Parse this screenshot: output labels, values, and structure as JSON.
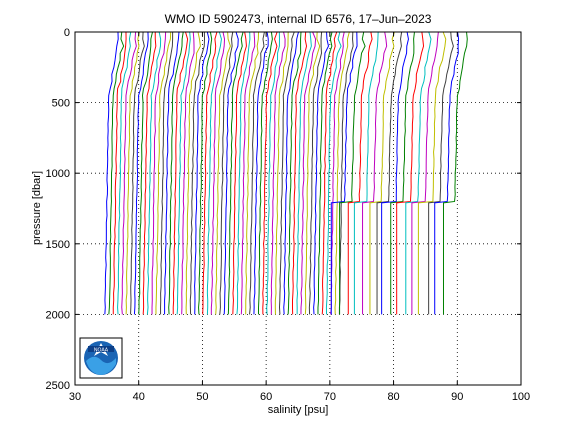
{
  "chart_data": {
    "type": "line",
    "title": "WMO ID 5902473, internal ID 6576, 17–Jun–2023",
    "xlabel": "salinity [psu]",
    "ylabel": "pressure [dbar]",
    "xlim": [
      30,
      100
    ],
    "ylim": [
      0,
      2500
    ],
    "y_reversed": true,
    "x_ticks": [
      "30",
      "40",
      "50",
      "60",
      "70",
      "80",
      "90",
      "100"
    ],
    "y_ticks": [
      "0",
      "500",
      "1000",
      "1500",
      "2000",
      "2500"
    ],
    "grid": "dotted",
    "legend": "none",
    "series_description": "Offset salinity profiles, one per cycle, each shifted right of the previous",
    "profiles_full_depth": {
      "count": 56,
      "base_salinity_start": 34.8,
      "base_salinity_end": 71.6,
      "max_pressure": 2000
    },
    "profiles_shallow_then_deep": {
      "count": 16,
      "base_salinity_start": 72.2,
      "base_salinity_end": 89.5,
      "shelf_pressure": 1200,
      "max_pressure": 2000
    },
    "line_colors": [
      "#0000ff",
      "#008000",
      "#ff0000",
      "#00bfbf",
      "#bf00bf",
      "#bfbf00",
      "#404040"
    ],
    "logo": "noaa-logo"
  }
}
